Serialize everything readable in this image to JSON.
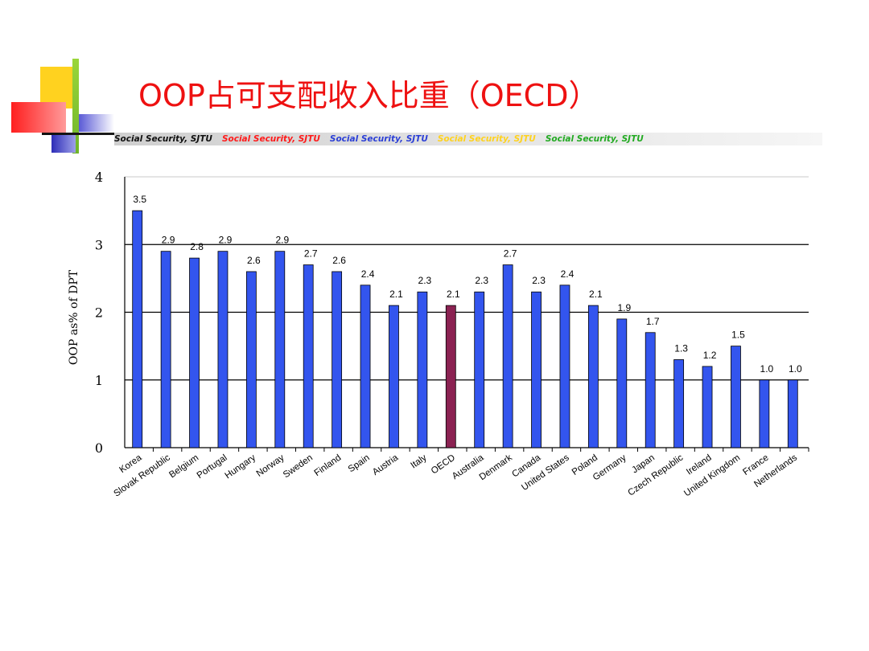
{
  "slide": {
    "title": "OOP占可支配收入比重（OECD）",
    "ribbon": [
      {
        "text": "Social Security,  SJTU",
        "color": "#111111"
      },
      {
        "text": "Social Security,  SJTU",
        "color": "#ff1a1a"
      },
      {
        "text": "Social Security,  SJTU",
        "color": "#2b3fd6"
      },
      {
        "text": "Social Security,  SJTU",
        "color": "#ffd21f"
      },
      {
        "text": "Social Security,  SJTU",
        "color": "#22aa22"
      }
    ]
  },
  "colors": {
    "bar": "#3355ee",
    "highlight": "#8b2252",
    "title": "#ee1111"
  },
  "chart_data": {
    "type": "bar",
    "title": "",
    "xlabel": "",
    "ylabel": "OOP as% of DPT",
    "ylim": [
      0,
      4
    ],
    "yticks": [
      "0",
      "1",
      "2",
      "3",
      "4"
    ],
    "grid": true,
    "legend": "none",
    "highlight_category": "OECD",
    "categories": [
      "Korea",
      "Slovak Republic",
      "Belgium",
      "Portugal",
      "Hungary",
      "Norway",
      "Sweden",
      "Finland",
      "Spain",
      "Austria",
      "Italy",
      "OECD",
      "Australia",
      "Denmark",
      "Canada",
      "United States",
      "Poland",
      "Germany",
      "Japan",
      "Czech Republic",
      "Ireland",
      "United Kingdom",
      "France",
      "Netherlands"
    ],
    "values": [
      3.5,
      2.9,
      2.8,
      2.9,
      2.6,
      2.9,
      2.7,
      2.6,
      2.4,
      2.1,
      2.3,
      2.1,
      2.3,
      2.7,
      2.3,
      2.4,
      2.1,
      1.9,
      1.7,
      1.3,
      1.2,
      1.5,
      1.0,
      1.0
    ],
    "labels": [
      "3.5",
      "2.9",
      "2.8",
      "2.9",
      "2.6",
      "2.9",
      "2.7",
      "2.6",
      "2.4",
      "2.1",
      "2.3",
      "2.1",
      "2.3",
      "2.7",
      "2.3",
      "2.4",
      "2.1",
      "1.9",
      "1.7",
      "1.3",
      "1.2",
      "1.5",
      "1.0",
      "1.0"
    ]
  }
}
